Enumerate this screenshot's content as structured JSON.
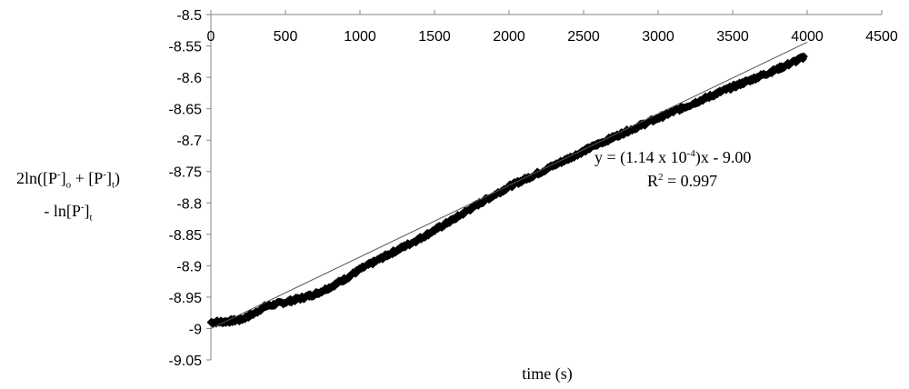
{
  "chart_data": {
    "type": "scatter",
    "title": "",
    "xlabel": "time (s)",
    "ylabel": {
      "line1": {
        "a": "2ln([P",
        "b": "-",
        "c": "]",
        "d": "o",
        "e": " + [P",
        "f": "-",
        "g": "]",
        "h": "t",
        "i": ")"
      },
      "line2": {
        "a": "- ln[P",
        "b": "-",
        "c": "]",
        "d": "t"
      }
    },
    "xlim": [
      0,
      4500
    ],
    "ylim": [
      -9.05,
      -8.5
    ],
    "x_axis_position": "top",
    "x_ticks": [
      "0",
      "500",
      "1000",
      "1500",
      "2000",
      "2500",
      "3000",
      "3500",
      "4000",
      "4500"
    ],
    "x_tick_values": [
      0,
      500,
      1000,
      1500,
      2000,
      2500,
      3000,
      3500,
      4000,
      4500
    ],
    "y_ticks": [
      "-8.5",
      "-8.55",
      "-8.6",
      "-8.65",
      "-8.7",
      "-8.75",
      "-8.8",
      "-8.85",
      "-8.9",
      "-8.95",
      "-9",
      "-9.05"
    ],
    "y_tick_values": [
      -8.5,
      -8.55,
      -8.6,
      -8.65,
      -8.7,
      -8.75,
      -8.8,
      -8.85,
      -8.9,
      -8.95,
      -9,
      -9.05
    ],
    "grid": false,
    "legend": "none",
    "series": [
      {
        "marker_color": "#000000",
        "marker": "diamond",
        "points": [
          [
            0,
            -8.99
          ],
          [
            100,
            -8.989
          ],
          [
            200,
            -8.986
          ],
          [
            300,
            -8.975
          ],
          [
            350,
            -8.966
          ],
          [
            400,
            -8.963
          ],
          [
            500,
            -8.958
          ],
          [
            600,
            -8.952
          ],
          [
            700,
            -8.945
          ],
          [
            800,
            -8.934
          ],
          [
            900,
            -8.921
          ],
          [
            1000,
            -8.906
          ],
          [
            1200,
            -8.881
          ],
          [
            1400,
            -8.857
          ],
          [
            1600,
            -8.83
          ],
          [
            1800,
            -8.801
          ],
          [
            2000,
            -8.774
          ],
          [
            2200,
            -8.752
          ],
          [
            2400,
            -8.729
          ],
          [
            2600,
            -8.706
          ],
          [
            2800,
            -8.685
          ],
          [
            3000,
            -8.665
          ],
          [
            3200,
            -8.645
          ],
          [
            3400,
            -8.625
          ],
          [
            3600,
            -8.606
          ],
          [
            3800,
            -8.587
          ],
          [
            3980,
            -8.568
          ]
        ]
      }
    ],
    "trendline": {
      "slope": 0.000114,
      "intercept": -9.0,
      "x_range": [
        0,
        4000
      ]
    },
    "annotations": {
      "equation": {
        "a": "y = (1.14 x 10",
        "b": "-4",
        "c": ")x - 9.00"
      },
      "r2": {
        "a": "R",
        "b": "2",
        "c": " = 0.997"
      }
    }
  }
}
